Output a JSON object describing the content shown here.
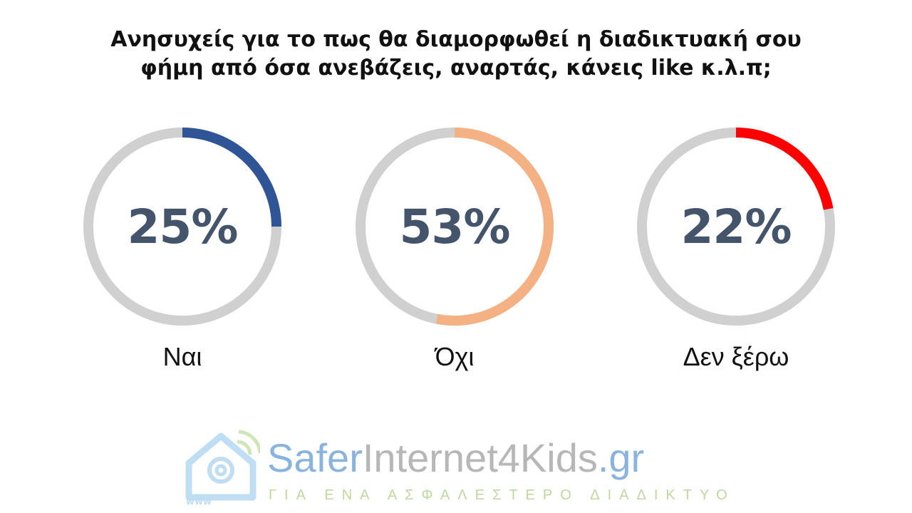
{
  "chart_data": {
    "type": "pie",
    "title_lines": [
      "Ανησυχείς για το πως θα διαμορφωθεί η διαδικτυακή σου",
      "φήμη από όσα ανεβάζεις, αναρτάς, κάνεις like κ.λ.π;"
    ],
    "categories": [
      "Ναι",
      "Όχι",
      "Δεν ξέρω"
    ],
    "values": [
      25,
      53,
      22
    ],
    "value_labels": [
      "25%",
      "53%",
      "22%"
    ],
    "colors": [
      "#2F5597",
      "#F4B183",
      "#FF0000"
    ],
    "track_color": "#D0D0D0"
  },
  "logo": {
    "text_part1": "Safer",
    "text_part2": "Internet4Kids",
    "text_part3": ".gr",
    "tagline": "ΓΙΑ ΕΝΑ ΑΣΦΑΛΕΣΤΕΡΟ ΔΙΑΔΙΚΤΥΟ",
    "icon_text": "www"
  }
}
